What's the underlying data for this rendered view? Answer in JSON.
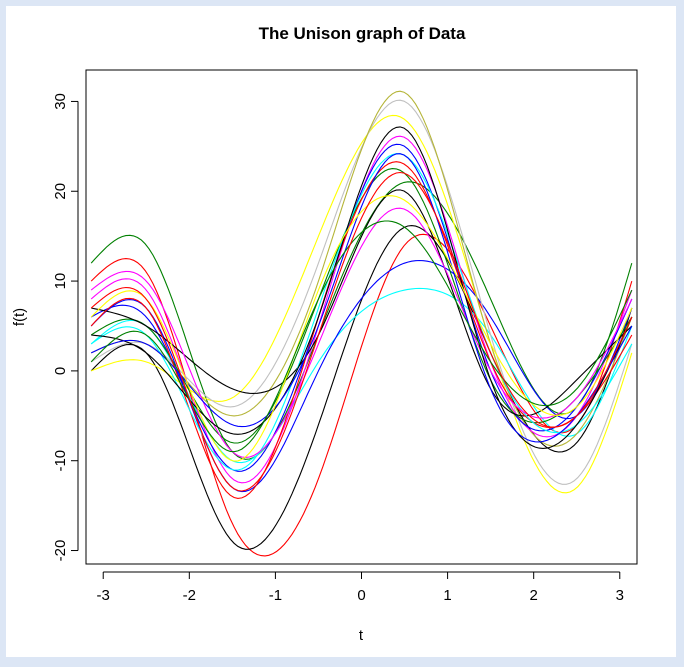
{
  "chart_data": {
    "type": "line",
    "title": "The Unison graph of Data",
    "xlabel": "t",
    "ylabel": "f(t)",
    "xlim": [
      -3.2,
      3.2
    ],
    "ylim": [
      -21.5,
      33.5
    ],
    "xticks": [
      -3,
      -2,
      -1,
      0,
      1,
      2,
      3
    ],
    "yticks": [
      -20,
      -10,
      0,
      10,
      20,
      30
    ],
    "grid": false,
    "legend": "none",
    "x": [
      -3.14,
      -2.5,
      -1.5,
      -0.5,
      0.5,
      1.5,
      2.5,
      3.14
    ],
    "series": [
      {
        "color": "#008000",
        "values": [
          12,
          14,
          -9,
          4,
          21,
          8,
          -4,
          12
        ]
      },
      {
        "color": "#ff0000",
        "values": [
          10,
          11,
          -17,
          -12,
          14,
          5,
          -6,
          10
        ]
      },
      {
        "color": "#000000",
        "values": [
          0,
          2,
          -19,
          -6,
          16,
          2,
          -8,
          7
        ]
      },
      {
        "color": "#00ffff",
        "values": [
          3,
          5,
          -10,
          1,
          9,
          4,
          -7,
          5
        ]
      },
      {
        "color": "#0000ff",
        "values": [
          5,
          7,
          -13,
          0,
          12,
          6,
          -5,
          7
        ]
      },
      {
        "color": "#ffff00",
        "values": [
          0,
          1,
          -3,
          15,
          28,
          3,
          -13,
          2
        ]
      },
      {
        "color": "#c0c0c0",
        "values": [
          1,
          3,
          -4,
          12,
          30,
          4,
          -12,
          3
        ]
      },
      {
        "color": "#b5b538",
        "values": [
          2,
          3,
          -5,
          10,
          31,
          3,
          -7,
          6
        ]
      },
      {
        "color": "#ff00ff",
        "values": [
          8,
          9,
          -12,
          5,
          26,
          1,
          -5,
          9
        ]
      },
      {
        "color": "#0000ff",
        "values": [
          6,
          6,
          -11,
          6,
          25,
          0,
          -4,
          8
        ]
      },
      {
        "color": "#008000",
        "values": [
          4,
          5,
          -8,
          8,
          22,
          -1,
          -3,
          6
        ]
      },
      {
        "color": "#000000",
        "values": [
          7,
          5,
          -2,
          4,
          20,
          -2,
          -1,
          5
        ]
      },
      {
        "color": "#ff0000",
        "values": [
          5,
          7,
          -14,
          6,
          23,
          1,
          -5,
          4
        ]
      },
      {
        "color": "#00ffff",
        "values": [
          3,
          4,
          -11,
          7,
          24,
          2,
          -6,
          3
        ]
      },
      {
        "color": "#ff00ff",
        "values": [
          9,
          10,
          -9,
          3,
          18,
          0,
          -3,
          8
        ]
      },
      {
        "color": "#000000",
        "values": [
          4,
          2,
          -7,
          6,
          27,
          -1,
          -6,
          6
        ]
      },
      {
        "color": "#0000ff",
        "values": [
          2,
          3,
          -6,
          5,
          24,
          -2,
          -5,
          5
        ]
      },
      {
        "color": "#ffff00",
        "values": [
          6,
          8,
          -10,
          9,
          19,
          3,
          -4,
          7
        ]
      },
      {
        "color": "#008000",
        "values": [
          1,
          4,
          -9,
          8,
          16,
          1,
          -2,
          9
        ]
      },
      {
        "color": "#ff0000",
        "values": [
          7,
          8,
          -13,
          4,
          22,
          2,
          -5,
          6
        ]
      }
    ]
  }
}
